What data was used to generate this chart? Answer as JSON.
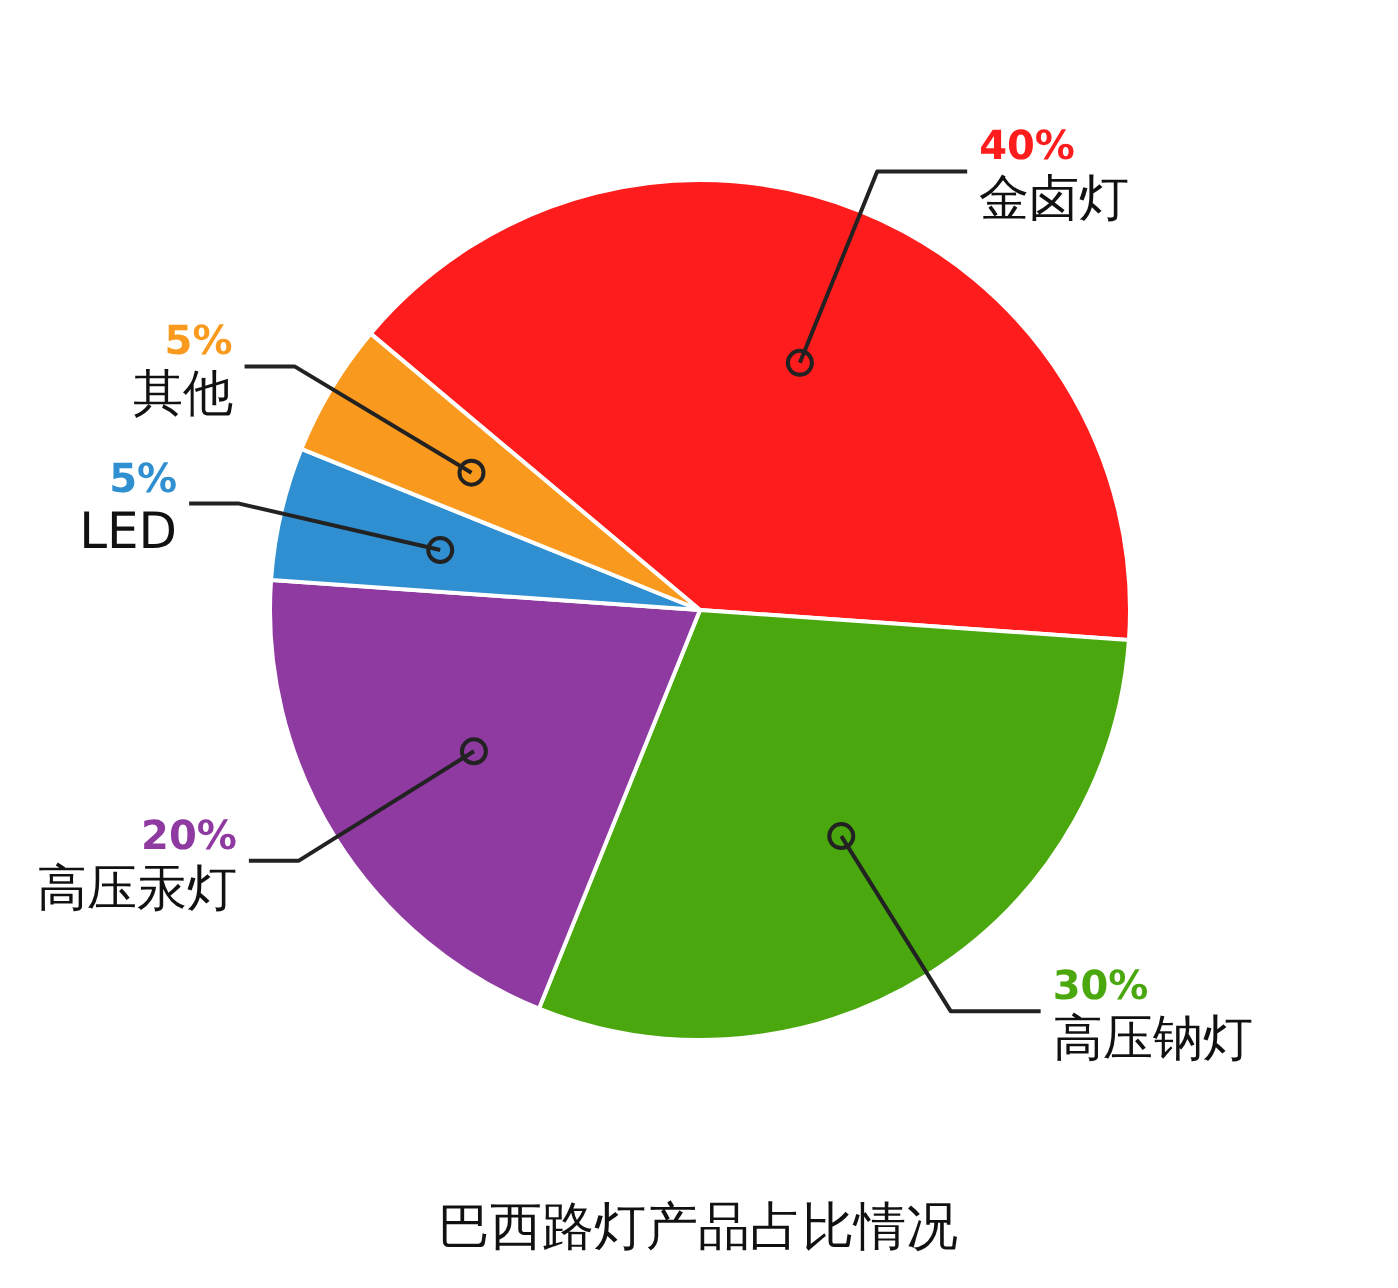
{
  "chart_data": {
    "type": "pie",
    "title": "巴西路灯产品占比情况",
    "categories": [
      "金卤灯",
      "高压钠灯",
      "高压汞灯",
      "LED",
      "其他"
    ],
    "values": [
      40,
      30,
      20,
      5,
      5
    ],
    "value_labels": [
      "40%",
      "30%",
      "20%",
      "5%",
      "5%"
    ],
    "colors": [
      "#fe1c1c",
      "#4aa80e",
      "#8e3aa0",
      "#2f8fd0",
      "#f99a1e"
    ]
  }
}
